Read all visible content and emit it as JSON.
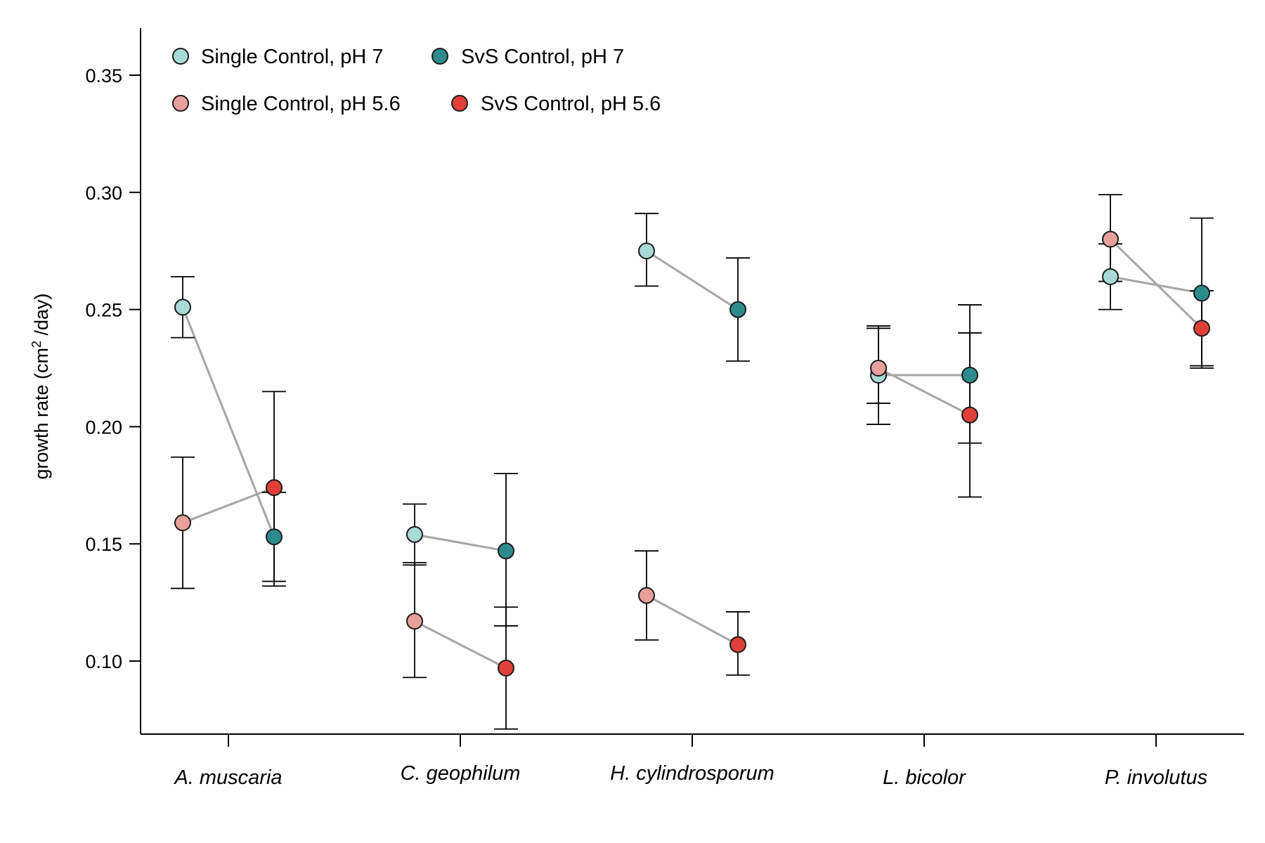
{
  "chart_data": {
    "type": "scatter",
    "ylabel_main": "growth rate (cm",
    "ylabel_sup": "2",
    "ylabel_tail": " /day)",
    "xlabel": "",
    "title": "",
    "ylim": [
      0.07,
      0.37
    ],
    "yticks": [
      "0.10",
      "0.15",
      "0.20",
      "0.25",
      "0.30",
      "0.35"
    ],
    "ytick_values": [
      0.1,
      0.15,
      0.2,
      0.25,
      0.3,
      0.35
    ],
    "categories": [
      "A. muscaria",
      "C. geophilum",
      "H. cylindrosporum",
      "L. bicolor",
      "P. involutus"
    ],
    "legend_position": "top-left",
    "grid": false,
    "series": [
      {
        "name": "Single Control, pH 7",
        "color": "#a8dad6",
        "position": "left",
        "values": [
          0.251,
          0.154,
          0.275,
          0.222,
          0.264
        ],
        "err_low": [
          0.238,
          0.141,
          0.26,
          0.21,
          0.25
        ],
        "err_high": [
          0.264,
          0.167,
          0.291,
          0.243,
          0.278
        ]
      },
      {
        "name": "SvS Control, pH 7",
        "color": "#2e8b8d",
        "position": "right",
        "values": [
          0.153,
          0.147,
          0.25,
          0.222,
          0.257
        ],
        "err_low": [
          0.132,
          0.115,
          0.228,
          0.193,
          0.225
        ],
        "err_high": [
          0.172,
          0.18,
          0.272,
          0.252,
          0.289
        ]
      },
      {
        "name": "Single Control, pH 5.6",
        "color": "#e8a09a",
        "position": "left",
        "values": [
          0.159,
          0.117,
          0.128,
          0.225,
          0.28
        ],
        "err_low": [
          0.131,
          0.093,
          0.109,
          0.201,
          0.262
        ],
        "err_high": [
          0.187,
          0.142,
          0.147,
          0.242,
          0.299
        ]
      },
      {
        "name": "SvS Control, pH 5.6",
        "color": "#e0403a",
        "position": "right",
        "values": [
          0.174,
          0.097,
          0.107,
          0.205,
          0.242
        ],
        "err_low": [
          0.134,
          0.071,
          0.094,
          0.17,
          0.226
        ],
        "err_high": [
          0.215,
          0.123,
          0.121,
          0.24,
          0.258
        ]
      }
    ]
  }
}
